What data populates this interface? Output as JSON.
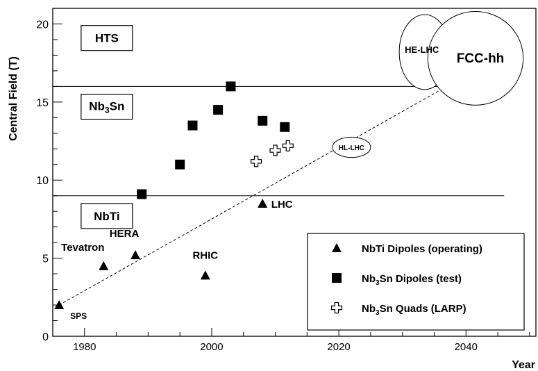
{
  "chart_data": {
    "type": "scatter",
    "xlabel": "Year",
    "ylabel": "Central Field (T)",
    "xlim": [
      1975,
      2051
    ],
    "ylim": [
      0,
      21
    ],
    "x_ticks": [
      1980,
      2000,
      2020,
      2040
    ],
    "y_ticks": [
      0,
      5,
      10,
      15,
      20
    ],
    "grid": false,
    "legend_position": "bottom-right",
    "series": [
      {
        "name": "NbTi Dipoles (operating)",
        "marker": "triangle",
        "points": [
          {
            "x": 1976,
            "y": 2.0,
            "label": "SPS"
          },
          {
            "x": 1983,
            "y": 4.5,
            "label": "Tevatron"
          },
          {
            "x": 1988,
            "y": 5.2,
            "label": "HERA"
          },
          {
            "x": 1999,
            "y": 3.9,
            "label": "RHIC"
          },
          {
            "x": 2008,
            "y": 8.5,
            "label": "LHC"
          }
        ]
      },
      {
        "name_main": "Nb",
        "name_sub": "3",
        "name_rest": "Sn Dipoles (test)",
        "marker": "square",
        "points": [
          {
            "x": 1989,
            "y": 9.1
          },
          {
            "x": 1995,
            "y": 11.0
          },
          {
            "x": 1997,
            "y": 13.5
          },
          {
            "x": 2001,
            "y": 14.5
          },
          {
            "x": 2003,
            "y": 16.0
          },
          {
            "x": 2008,
            "y": 13.8
          },
          {
            "x": 2011.5,
            "y": 13.4
          }
        ]
      },
      {
        "name_main": "Nb",
        "name_sub": "3",
        "name_rest": "Sn Quads (LARP)",
        "marker": "open-cross",
        "points": [
          {
            "x": 2007,
            "y": 11.2
          },
          {
            "x": 2010,
            "y": 11.9
          },
          {
            "x": 2012,
            "y": 12.2
          }
        ]
      }
    ],
    "horizontal_lines": [
      {
        "y": 16.0,
        "x_end": 2046
      },
      {
        "y": 9.0,
        "x_end": 2046
      }
    ],
    "trend_line": {
      "x": [
        1976,
        2037
      ],
      "y": [
        2.0,
        16.0
      ],
      "style": "dashed"
    },
    "regions": [
      {
        "text": "HTS",
        "x": 1983.5,
        "y": 19.1
      },
      {
        "main": "Nb",
        "sub": "3",
        "rest": "Sn",
        "x": 1983.5,
        "y": 14.7
      },
      {
        "text": "NbTi",
        "x": 1983.5,
        "y": 7.7
      }
    ],
    "future_machines": [
      {
        "name": "HE-LHC",
        "cx": 2033.5,
        "cy": 18.2,
        "rx": 4,
        "ry": 2.4
      },
      {
        "name": "FCC-hh",
        "cx": 2041.5,
        "cy": 17.8,
        "rx": 7.5,
        "ry": 3.0
      },
      {
        "name": "HL-LHC",
        "cx": 2022,
        "cy": 12.1,
        "rx": 3,
        "ry": 0.65
      }
    ]
  }
}
